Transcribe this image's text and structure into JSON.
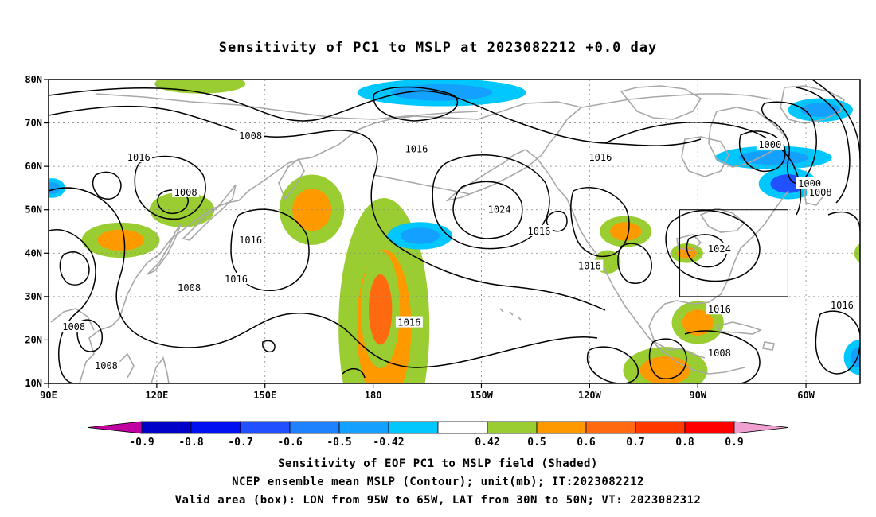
{
  "title": "Sensitivity of PC1 to MSLP at 2023082212 +0.0 day",
  "map": {
    "lat_labels": [
      "80N",
      "70N",
      "60N",
      "50N",
      "40N",
      "30N",
      "20N",
      "10N"
    ],
    "lon_labels": [
      "90E",
      "120E",
      "150E",
      "180",
      "150W",
      "120W",
      "90W",
      "60W"
    ],
    "extent": {
      "lon_min": 90,
      "lon_max": 315,
      "lat_min": 10,
      "lat_max": 80
    },
    "box": {
      "lon_west": 265,
      "lon_east": 295,
      "lat_south": 30,
      "lat_north": 50
    },
    "contour_labels": [
      {
        "text": "1008",
        "lon": 146,
        "lat": 67
      },
      {
        "text": "1016",
        "lon": 115,
        "lat": 62
      },
      {
        "text": "1016",
        "lon": 192,
        "lat": 64
      },
      {
        "text": "1016",
        "lon": 243,
        "lat": 62
      },
      {
        "text": "1000",
        "lon": 290,
        "lat": 65
      },
      {
        "text": "1000",
        "lon": 301,
        "lat": 56
      },
      {
        "text": "1008",
        "lon": 304,
        "lat": 54
      },
      {
        "text": "1008",
        "lon": 128,
        "lat": 54
      },
      {
        "text": "1024",
        "lon": 215,
        "lat": 50
      },
      {
        "text": "1016",
        "lon": 146,
        "lat": 43
      },
      {
        "text": "1016",
        "lon": 226,
        "lat": 45
      },
      {
        "text": "1024",
        "lon": 276,
        "lat": 41
      },
      {
        "text": "1016",
        "lon": 240,
        "lat": 37
      },
      {
        "text": "1016",
        "lon": 142,
        "lat": 34
      },
      {
        "text": "1008",
        "lon": 129,
        "lat": 32
      },
      {
        "text": "1016",
        "lon": 276,
        "lat": 27
      },
      {
        "text": "1016",
        "lon": 310,
        "lat": 28
      },
      {
        "text": "1016",
        "lon": 190,
        "lat": 24
      },
      {
        "text": "1008",
        "lon": 97,
        "lat": 23
      },
      {
        "text": "1008",
        "lon": 276,
        "lat": 17
      },
      {
        "text": "1008",
        "lon": 106,
        "lat": 14
      }
    ],
    "shading": [
      {
        "lon": 110,
        "lat": 43,
        "rx": 12,
        "ry": 9,
        "level": "0.6"
      },
      {
        "lon": 127,
        "lat": 50,
        "rx": 10,
        "ry": 9,
        "level": "0.5"
      },
      {
        "lon": 183,
        "lat": 23,
        "rx": 14,
        "ry": 66,
        "level": "0.6"
      },
      {
        "lon": 182,
        "lat": 27,
        "rx": 6,
        "ry": 30,
        "level": "0.7"
      },
      {
        "lon": 163,
        "lat": 50,
        "rx": 10,
        "ry": 18,
        "level": "0.6"
      },
      {
        "lon": 193,
        "lat": 44,
        "rx": 10,
        "ry": 7,
        "level": "-0.5"
      },
      {
        "lon": 199,
        "lat": 77,
        "rx": 26,
        "ry": 7,
        "level": "-0.5"
      },
      {
        "lon": 291,
        "lat": 62,
        "rx": 18,
        "ry": 6,
        "level": "-0.5"
      },
      {
        "lon": 295,
        "lat": 56,
        "rx": 9,
        "ry": 8,
        "level": "-0.6"
      },
      {
        "lon": 304,
        "lat": 73,
        "rx": 10,
        "ry": 6,
        "level": "-0.5"
      },
      {
        "lon": 267,
        "lat": 40,
        "rx": 5,
        "ry": 5,
        "level": "0.6"
      },
      {
        "lon": 270,
        "lat": 24,
        "rx": 8,
        "ry": 11,
        "level": "0.6"
      },
      {
        "lon": 261,
        "lat": 13,
        "rx": 13,
        "ry": 12,
        "level": "0.6"
      },
      {
        "lon": 250,
        "lat": 45,
        "rx": 8,
        "ry": 8,
        "level": "0.6"
      },
      {
        "lon": 245,
        "lat": 38,
        "rx": 4,
        "ry": 6,
        "level": "0.5"
      },
      {
        "lon": 315,
        "lat": 16,
        "rx": 5,
        "ry": 9,
        "level": "-0.5"
      },
      {
        "lon": 91,
        "lat": 55,
        "rx": 4,
        "ry": 5,
        "level": "-0.5"
      },
      {
        "lon": 132,
        "lat": 79,
        "rx": 14,
        "ry": 5,
        "level": "0.5"
      },
      {
        "lon": 317,
        "lat": 40,
        "rx": 4,
        "ry": 6,
        "level": "0.5"
      }
    ]
  },
  "colorbar": {
    "labels": [
      "-0.9",
      "-0.8",
      "-0.7",
      "-0.6",
      "-0.5",
      "-0.42",
      "0.42",
      "0.5",
      "0.6",
      "0.7",
      "0.8",
      "0.9"
    ],
    "colors": [
      "#c000a0",
      "#0000c8",
      "#0010f0",
      "#2050ff",
      "#1e82ff",
      "#14a0ff",
      "#00c8ff",
      "#ffffff",
      "#9acd32",
      "#ff9900",
      "#ff6a10",
      "#ff3a00",
      "#ff0000",
      "#f0a0d0"
    ]
  },
  "captions": {
    "line1": "Sensitivity of EOF PC1 to MSLP field (Shaded)",
    "line2": "NCEP ensemble mean MSLP (Contour); unit(mb); IT:2023082212",
    "line3": "Valid area (box): LON from 95W to 65W, LAT from 30N to 50N; VT: 2023082312"
  }
}
